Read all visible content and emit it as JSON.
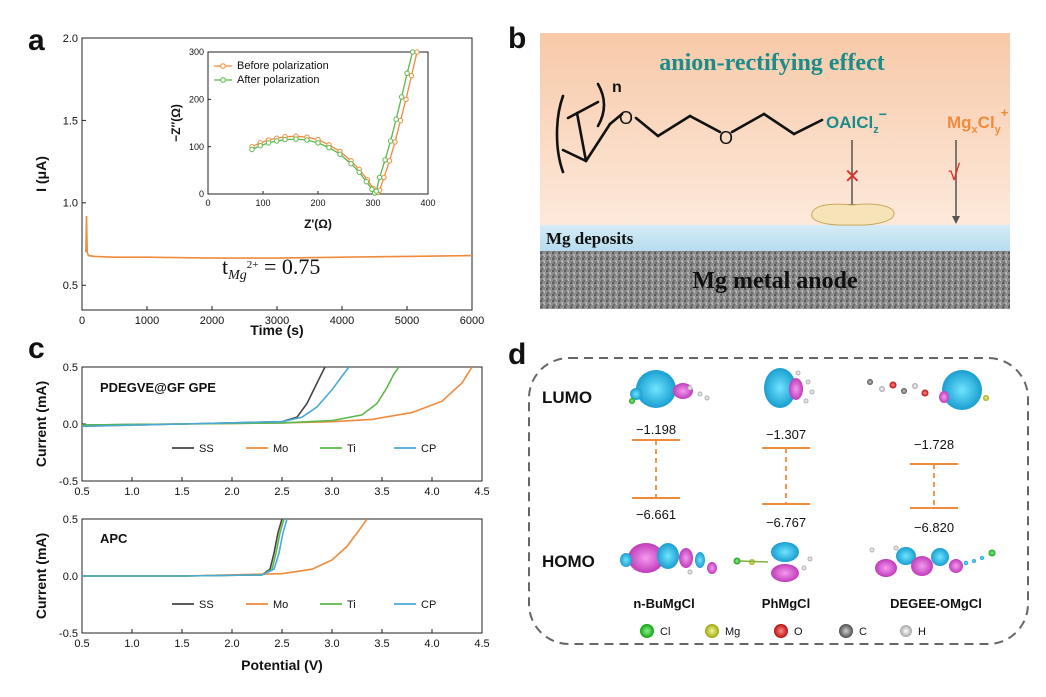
{
  "panels": {
    "a": "a",
    "b": "b",
    "c": "c",
    "d": "d"
  },
  "colors": {
    "orange": "#f08a3c",
    "green": "#5cb84a",
    "black": "#444444",
    "blue": "#4aa9d6",
    "teal": "#1a8c8a",
    "mgorange": "#f08a3c",
    "cross": "#e0302a"
  },
  "chart_data": [
    {
      "id": "a-main",
      "type": "line",
      "xlabel": "Time (s)",
      "ylabel": "I (μA)",
      "xlim": [
        0,
        6000
      ],
      "ylim": [
        0.35,
        2.0
      ],
      "xticks": [
        "0",
        "1000",
        "2000",
        "3000",
        "4000",
        "5000",
        "6000"
      ],
      "xtick_values": [
        0,
        1000,
        2000,
        3000,
        4000,
        5000,
        6000
      ],
      "yticks": [
        "0.5",
        "1.0",
        "1.5",
        "2.0"
      ],
      "ytick_values": [
        0.5,
        1.0,
        1.5,
        2.0
      ],
      "series": [
        {
          "name": "current",
          "color": "#f08a3c",
          "x": [
            60,
            70,
            80,
            100,
            200,
            500,
            1000,
            2000,
            3000,
            4000,
            5000,
            6000
          ],
          "y": [
            0.7,
            0.92,
            0.7,
            0.68,
            0.675,
            0.67,
            0.67,
            0.665,
            0.665,
            0.67,
            0.675,
            0.68
          ]
        }
      ],
      "annotation": "t_Mg2+ = 0.75"
    },
    {
      "id": "a-inset",
      "type": "line",
      "xlabel": "Z'(Ω)",
      "ylabel": "−Z″(Ω)",
      "xlim": [
        0,
        400
      ],
      "ylim": [
        0,
        300
      ],
      "xticks": [
        "0",
        "100",
        "200",
        "300",
        "400"
      ],
      "xtick_values": [
        0,
        100,
        200,
        300,
        400
      ],
      "yticks": [
        "0",
        "100",
        "200",
        "300"
      ],
      "ytick_values": [
        0,
        100,
        200,
        300
      ],
      "series": [
        {
          "name": "Before polarization",
          "color": "#f08a3c",
          "x": [
            80,
            95,
            110,
            125,
            140,
            160,
            180,
            200,
            220,
            240,
            260,
            275,
            290,
            300,
            308,
            312,
            320,
            330,
            340,
            350,
            360,
            370,
            380
          ],
          "y": [
            100,
            108,
            114,
            118,
            121,
            122,
            120,
            115,
            104,
            90,
            70,
            52,
            30,
            12,
            3,
            8,
            35,
            70,
            110,
            155,
            200,
            250,
            300
          ]
        },
        {
          "name": "After polarization",
          "color": "#5cb84a",
          "x": [
            80,
            95,
            110,
            125,
            140,
            160,
            180,
            200,
            220,
            240,
            260,
            275,
            288,
            298,
            303,
            306,
            312,
            322,
            332,
            342,
            352,
            362,
            372
          ],
          "y": [
            94,
            102,
            108,
            112,
            115,
            116,
            114,
            108,
            98,
            84,
            64,
            46,
            26,
            10,
            2,
            6,
            35,
            72,
            112,
            158,
            205,
            255,
            300
          ]
        }
      ]
    },
    {
      "id": "c-top",
      "type": "line",
      "label": "PDEGVE@GF GPE",
      "xlabel": "",
      "ylabel": "Current (mA)",
      "xlim": [
        0.5,
        4.5
      ],
      "ylim": [
        -0.5,
        0.5
      ],
      "xticks": [
        "0.5",
        "1.0",
        "1.5",
        "2.0",
        "2.5",
        "3.0",
        "3.5",
        "4.0",
        "4.5"
      ],
      "xtick_values": [
        0.5,
        1.0,
        1.5,
        2.0,
        2.5,
        3.0,
        3.5,
        4.0,
        4.5
      ],
      "yticks": [
        "-0.5",
        "0.0",
        "0.5"
      ],
      "ytick_values": [
        -0.5,
        0.0,
        0.5
      ],
      "series": [
        {
          "name": "SS",
          "color": "#444444",
          "x": [
            0.5,
            1.5,
            2.5,
            2.65,
            2.75,
            2.85,
            2.93
          ],
          "y": [
            -0.01,
            0.0,
            0.02,
            0.06,
            0.18,
            0.36,
            0.5
          ]
        },
        {
          "name": "Mo",
          "color": "#f08a3c",
          "x": [
            0.5,
            1.5,
            2.5,
            3.0,
            3.4,
            3.8,
            4.1,
            4.3,
            4.4
          ],
          "y": [
            -0.02,
            0.0,
            0.01,
            0.02,
            0.04,
            0.1,
            0.2,
            0.36,
            0.5
          ]
        },
        {
          "name": "Ti",
          "color": "#5cb84a",
          "x": [
            0.5,
            1.5,
            2.5,
            3.0,
            3.3,
            3.45,
            3.55,
            3.62,
            3.67
          ],
          "y": [
            -0.01,
            0.0,
            0.01,
            0.03,
            0.08,
            0.18,
            0.32,
            0.44,
            0.5
          ]
        },
        {
          "name": "CP",
          "color": "#4aa9d6",
          "x": [
            0.5,
            1.5,
            2.5,
            2.7,
            2.85,
            3.0,
            3.1,
            3.17
          ],
          "y": [
            -0.02,
            0.0,
            0.02,
            0.06,
            0.15,
            0.3,
            0.42,
            0.5
          ]
        }
      ],
      "legend": [
        "SS",
        "Mo",
        "Ti",
        "CP"
      ]
    },
    {
      "id": "c-bottom",
      "type": "line",
      "label": "APC",
      "xlabel": "Potential (V)",
      "ylabel": "Current (mA)",
      "xlim": [
        0.5,
        4.5
      ],
      "ylim": [
        -0.5,
        0.5
      ],
      "xticks": [
        "0.5",
        "1.0",
        "1.5",
        "2.0",
        "2.5",
        "3.0",
        "3.5",
        "4.0",
        "4.5"
      ],
      "xtick_values": [
        0.5,
        1.0,
        1.5,
        2.0,
        2.5,
        3.0,
        3.5,
        4.0,
        4.5
      ],
      "yticks": [
        "-0.5",
        "0.0",
        "0.5"
      ],
      "ytick_values": [
        -0.5,
        0.0,
        0.5
      ],
      "series": [
        {
          "name": "SS",
          "color": "#444444",
          "x": [
            0.5,
            1.5,
            2.3,
            2.38,
            2.42,
            2.46,
            2.5
          ],
          "y": [
            0.0,
            0.0,
            0.01,
            0.06,
            0.2,
            0.38,
            0.5
          ]
        },
        {
          "name": "Mo",
          "color": "#f08a3c",
          "x": [
            0.5,
            1.5,
            2.5,
            2.8,
            3.0,
            3.15,
            3.27,
            3.35
          ],
          "y": [
            0.0,
            0.0,
            0.02,
            0.06,
            0.14,
            0.26,
            0.4,
            0.5
          ]
        },
        {
          "name": "Ti",
          "color": "#5cb84a",
          "x": [
            0.5,
            1.5,
            2.3,
            2.4,
            2.44,
            2.48,
            2.52
          ],
          "y": [
            0.0,
            0.0,
            0.01,
            0.06,
            0.2,
            0.38,
            0.5
          ]
        },
        {
          "name": "CP",
          "color": "#4aa9d6",
          "x": [
            0.5,
            1.5,
            2.3,
            2.42,
            2.47,
            2.51,
            2.55
          ],
          "y": [
            0.0,
            0.0,
            0.01,
            0.06,
            0.2,
            0.38,
            0.5
          ]
        }
      ],
      "legend": [
        "SS",
        "Mo",
        "Ti",
        "CP"
      ]
    }
  ],
  "panel_b": {
    "title": "anion-rectifying effect",
    "polymer_n": "n",
    "oxygen": "O",
    "anion": "OAlCl",
    "anion_sub": "z",
    "anion_sup": "−",
    "cation": "Mg",
    "cation_sub1": "x",
    "cation_mid": "Cl",
    "cation_sub2": "y",
    "cation_sup": "+",
    "cross": "✕",
    "check": "√",
    "deposits": "Mg deposits",
    "anode": "Mg metal anode"
  },
  "panel_d": {
    "lumo": "LUMO",
    "homo": "HOMO",
    "molecules": [
      {
        "name": "n-BuMgCl",
        "lumo": "−1.198",
        "homo": "−6.661"
      },
      {
        "name": "PhMgCl",
        "lumo": "−1.307",
        "homo": "−6.767"
      },
      {
        "name": "DEGEE-OMgCl",
        "lumo": "−1.728",
        "homo": "−6.820"
      }
    ],
    "atoms": [
      {
        "symbol": "Cl",
        "color": "#22c322"
      },
      {
        "symbol": "Mg",
        "color": "#c8d21e"
      },
      {
        "symbol": "O",
        "color": "#e01414"
      },
      {
        "symbol": "C",
        "color": "#7a7a7a"
      },
      {
        "symbol": "H",
        "color": "#d8d8d8"
      }
    ]
  }
}
